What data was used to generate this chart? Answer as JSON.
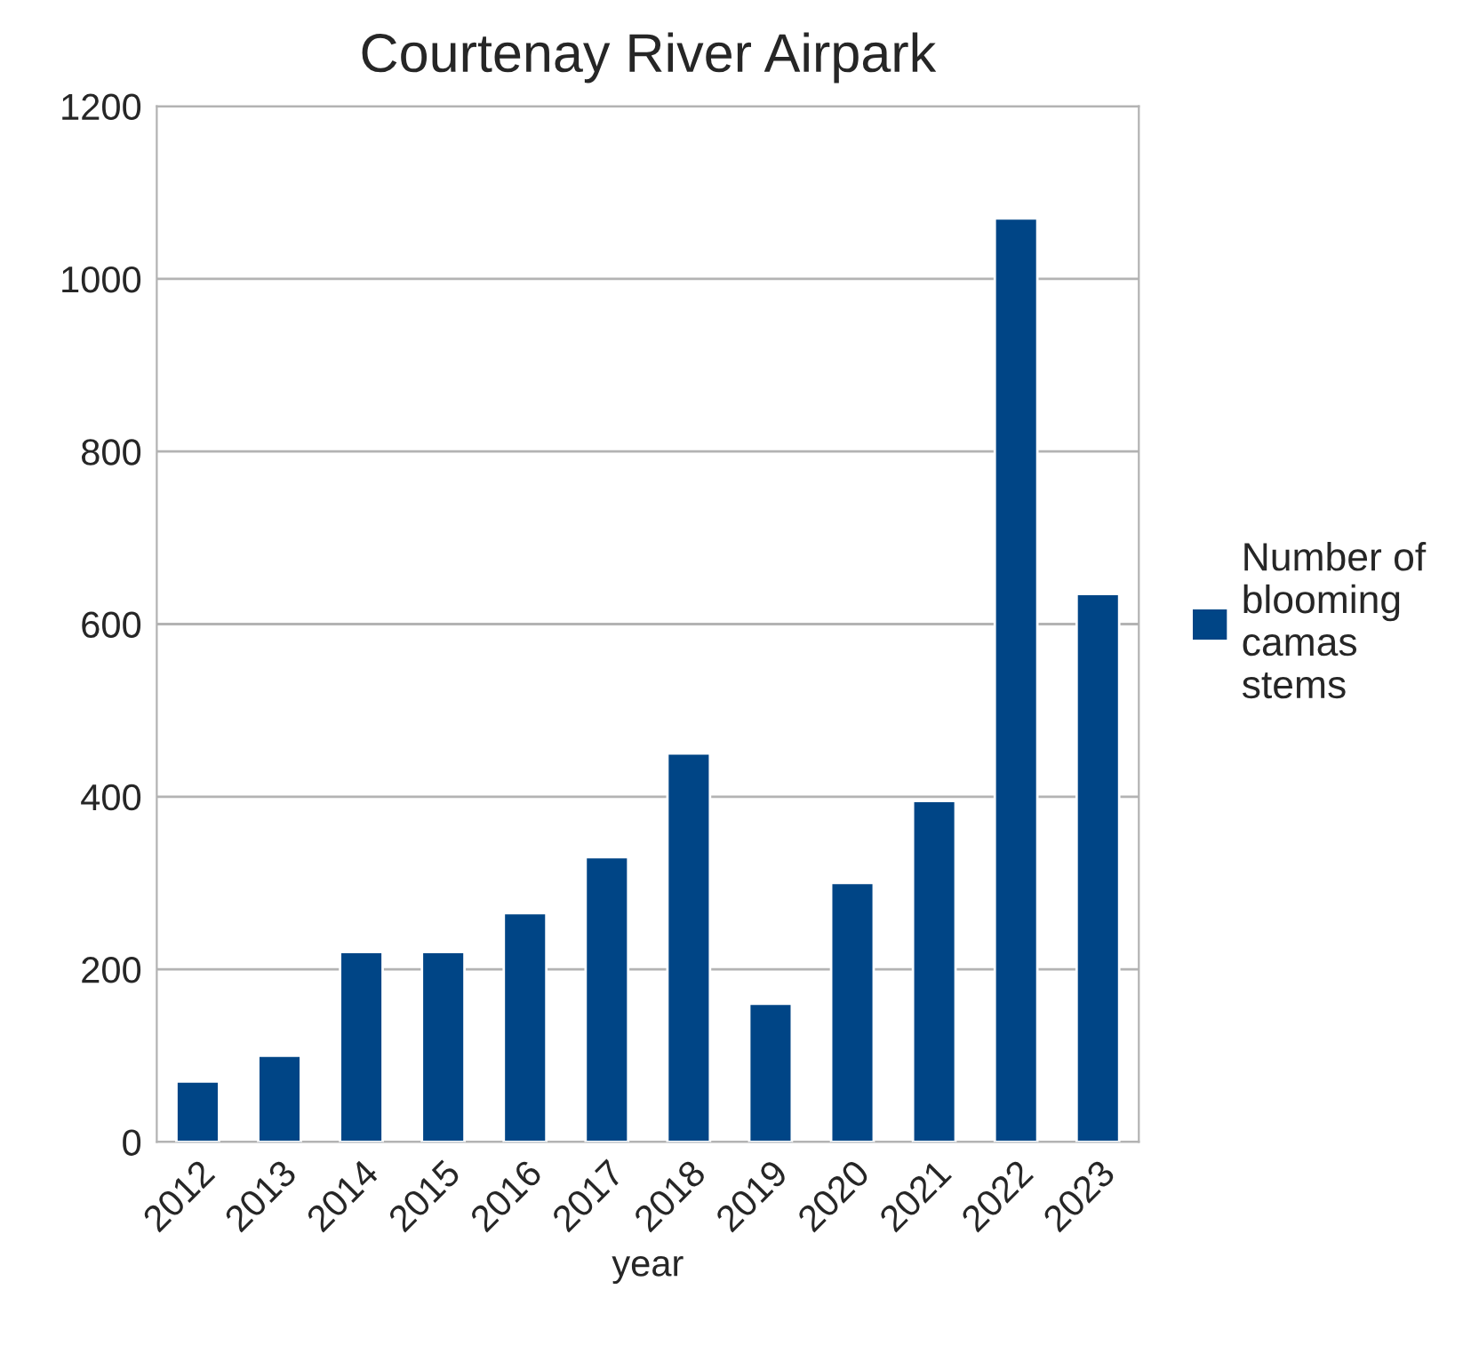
{
  "chart_data": {
    "type": "bar",
    "title": "Courtenay River Airpark",
    "xlabel": "year",
    "categories": [
      "2012",
      "2013",
      "2014",
      "2015",
      "2016",
      "2017",
      "2018",
      "2019",
      "2020",
      "2021",
      "2022",
      "2023"
    ],
    "series": [
      {
        "name": "Number of\nblooming\ncamas\nstems",
        "color": "#004586",
        "values": [
          70,
          100,
          220,
          220,
          265,
          330,
          450,
          160,
          300,
          395,
          1070,
          635
        ]
      }
    ],
    "ylim": [
      0,
      1200
    ],
    "yticks": [
      0,
      200,
      400,
      600,
      800,
      1000,
      1200
    ],
    "grid": "y",
    "legend": "right"
  }
}
